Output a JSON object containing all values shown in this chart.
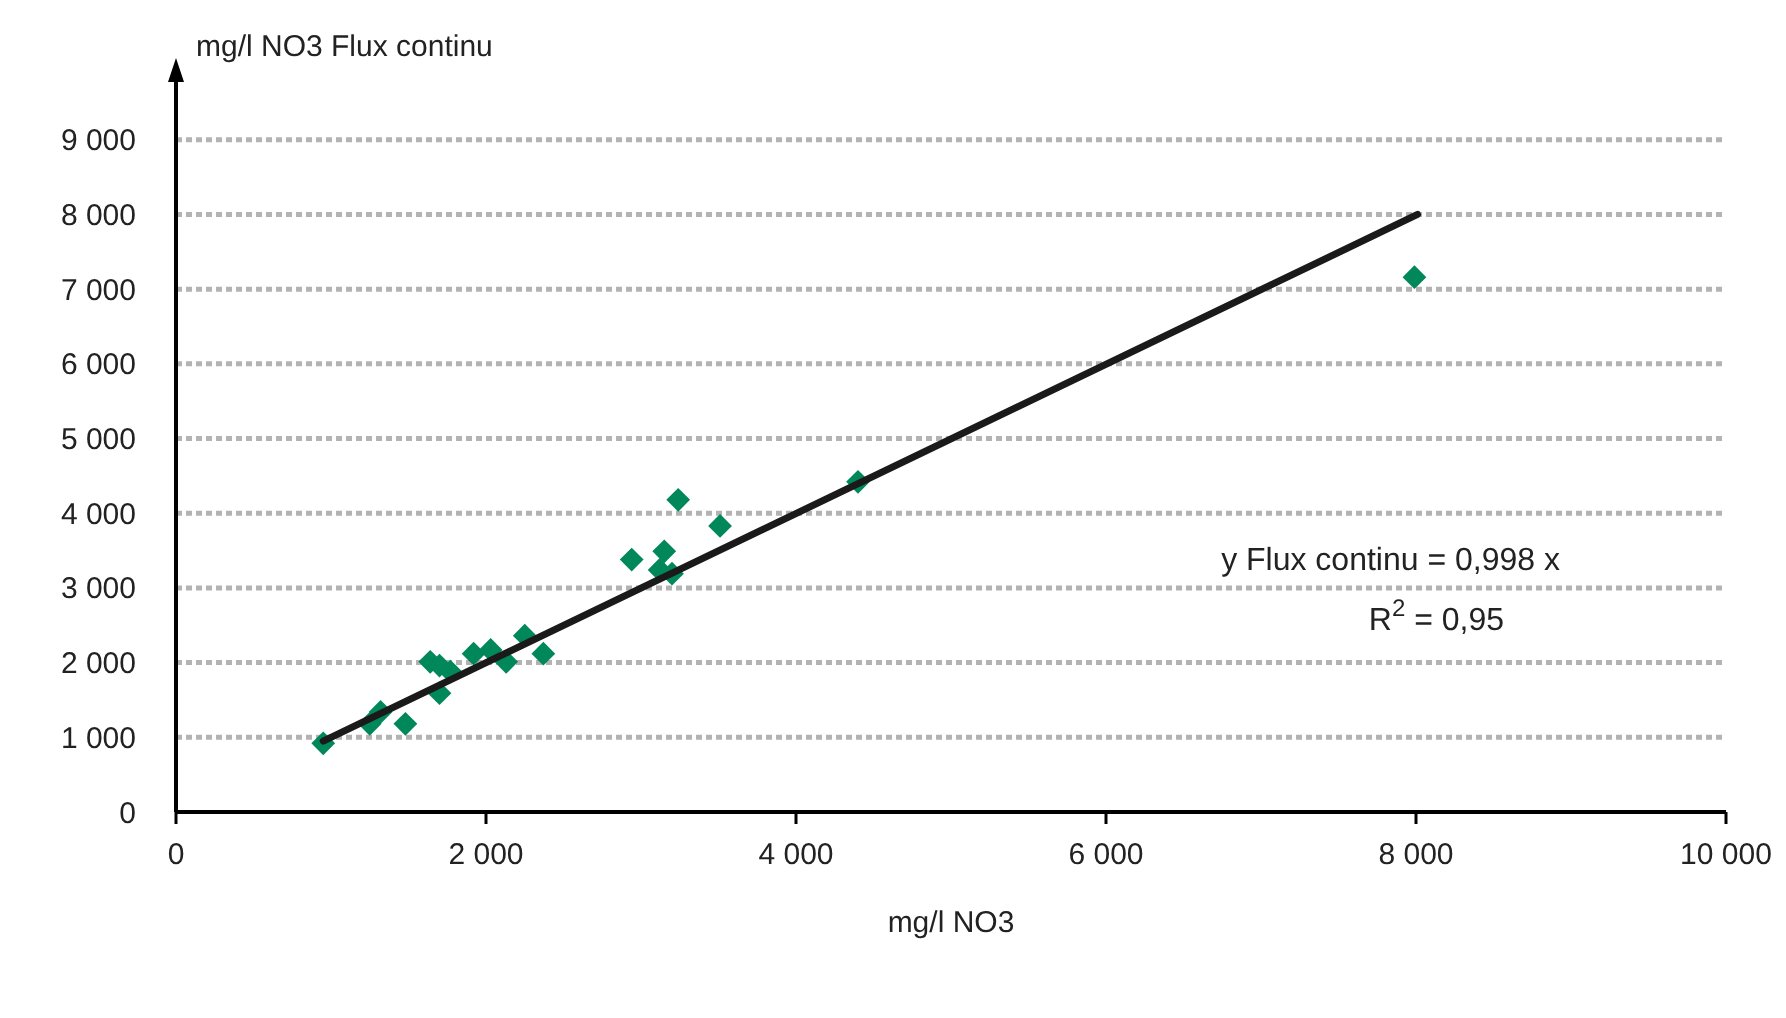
{
  "chart_data": {
    "type": "scatter",
    "xlabel": "mg/l NO3",
    "ylabel": "mg/l NO3 Flux continu",
    "xlim": [
      0,
      10000
    ],
    "ylim": [
      0,
      9800
    ],
    "xticks": [
      0,
      {
        "value": 2000,
        "label": "2 000"
      },
      {
        "value": 4000,
        "label": "4 000"
      },
      {
        "value": 6000,
        "label": "6 000"
      },
      {
        "value": 8000,
        "label": "8 000"
      },
      {
        "value": 10000,
        "label": "10 000"
      }
    ],
    "yticks": [
      0,
      {
        "value": 1000,
        "label": "1 000"
      },
      {
        "value": 2000,
        "label": "2 000"
      },
      {
        "value": 3000,
        "label": "3 000"
      },
      {
        "value": 4000,
        "label": "4 000"
      },
      {
        "value": 5000,
        "label": "5 000"
      },
      {
        "value": 6000,
        "label": "6 000"
      },
      {
        "value": 7000,
        "label": "7 000"
      },
      {
        "value": 8000,
        "label": "8 000"
      },
      {
        "value": 9000,
        "label": "9 000"
      }
    ],
    "grid": "y",
    "marker": "diamond",
    "series": [
      {
        "type": "scatter",
        "color": "#00875a",
        "x": [
          950,
          1250,
          1320,
          1480,
          1640,
          1700,
          1770,
          1700,
          1920,
          2030,
          2130,
          2250,
          2370,
          2940,
          3150,
          3120,
          3200,
          3240,
          3510,
          4400,
          7990
        ],
        "values": [
          920,
          1180,
          1340,
          1180,
          2010,
          1960,
          1880,
          1590,
          2120,
          2170,
          2010,
          2360,
          2120,
          3380,
          3490,
          3240,
          3190,
          4180,
          3830,
          4420,
          7160
        ]
      },
      {
        "type": "line",
        "color": "#1a1a1a",
        "line_style": "solid",
        "marker": "none",
        "x": [
          950,
          8010
        ],
        "values": [
          950,
          8000
        ]
      }
    ],
    "annotations": [
      "y Flux continu = 0,998 x",
      "R$^{2}$ = 0,95"
    ]
  }
}
